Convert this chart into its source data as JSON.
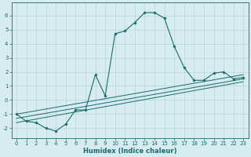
{
  "xlabel": "Humidex (Indice chaleur)",
  "ylabel": "",
  "background_color": "#d6ecf0",
  "grid_color": "#b8d4da",
  "line_color": "#1a6b6b",
  "xlim": [
    -0.5,
    23.5
  ],
  "ylim": [
    -2.7,
    6.9
  ],
  "yticks": [
    -2,
    -1,
    0,
    1,
    2,
    3,
    4,
    5,
    6
  ],
  "xticks": [
    0,
    1,
    2,
    3,
    4,
    5,
    6,
    7,
    8,
    9,
    10,
    11,
    12,
    13,
    14,
    15,
    16,
    17,
    18,
    19,
    20,
    21,
    22,
    23
  ],
  "series_main": {
    "x": [
      0,
      1,
      2,
      3,
      4,
      5,
      6,
      7,
      8,
      9,
      10,
      11,
      12,
      13,
      14,
      15,
      16,
      17,
      18,
      19,
      20,
      21,
      22,
      23
    ],
    "y": [
      -1.0,
      -1.5,
      -1.6,
      -2.0,
      -2.2,
      -1.7,
      -0.7,
      -0.7,
      1.8,
      0.3,
      4.7,
      4.9,
      5.5,
      6.2,
      6.2,
      5.8,
      3.8,
      2.3,
      1.4,
      1.4,
      1.9,
      2.0,
      1.5,
      1.6
    ]
  },
  "series_lines": [
    {
      "x": [
        0,
        23
      ],
      "y": [
        -1.6,
        1.3
      ]
    },
    {
      "x": [
        0,
        23
      ],
      "y": [
        -1.3,
        1.5
      ]
    },
    {
      "x": [
        0,
        23
      ],
      "y": [
        -1.0,
        1.8
      ]
    }
  ],
  "tick_fontsize": 5.0,
  "xlabel_fontsize": 6.0
}
